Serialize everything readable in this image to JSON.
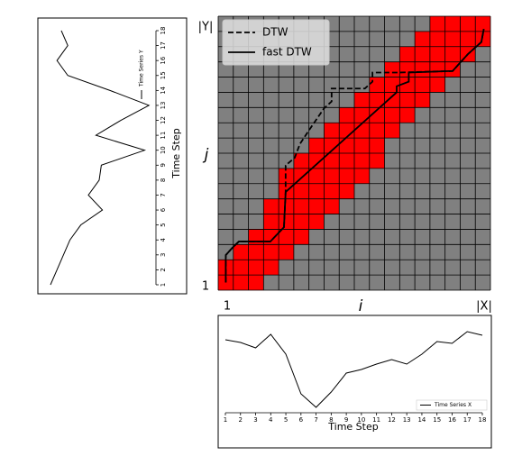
{
  "chart_data": [
    {
      "type": "grid",
      "y_end_label": "|Y|",
      "ylabel": "j",
      "y_start_label": "1",
      "x_start_label": "1",
      "xlabel": "i",
      "x_end_label": "|X|",
      "xlim": [
        0.5,
        18.5
      ],
      "ylim": [
        0.5,
        18.5
      ],
      "background": "#808080",
      "window_color": "#ff0000",
      "window": [
        [
          1,
          3
        ],
        [
          1,
          4
        ],
        [
          2,
          5
        ],
        [
          3,
          6
        ],
        [
          4,
          7
        ],
        [
          4,
          8
        ],
        [
          5,
          9
        ],
        [
          5,
          10
        ],
        [
          6,
          11
        ],
        [
          7,
          11
        ],
        [
          8,
          12
        ],
        [
          9,
          13
        ],
        [
          10,
          14
        ],
        [
          11,
          15
        ],
        [
          12,
          16
        ],
        [
          13,
          17
        ],
        [
          14,
          18
        ],
        [
          15,
          18
        ]
      ],
      "legend": "upper left",
      "series": [
        {
          "name": "DTW",
          "color": "#000000",
          "dashed": true,
          "x": [
            1,
            1,
            1.45,
            1.87,
            3.95,
            4.85,
            4.96,
            4.96,
            5.56,
            5.9,
            6.5,
            7.5,
            8.0,
            8.0,
            10.2,
            10.7,
            10.7,
            12.4,
            16.0,
            17.0,
            17.9,
            18.06
          ],
          "values": [
            1,
            2.8,
            3.3,
            3.7,
            3.7,
            4.64,
            6.95,
            8.7,
            9.2,
            10.1,
            11.0,
            12.45,
            12.9,
            13.75,
            13.75,
            14.2,
            14.8,
            14.8,
            14.9,
            16.0,
            16.8,
            17.66
          ]
        },
        {
          "name": "fast DTW",
          "color": "#000000",
          "dashed": false,
          "x": [
            1,
            1,
            1.45,
            1.87,
            3.95,
            4.85,
            4.96,
            12.3,
            12.3,
            13.1,
            13.1,
            16.0,
            17.0,
            17.9,
            18.06
          ],
          "values": [
            1,
            2.8,
            3.3,
            3.7,
            3.7,
            4.64,
            6.95,
            13.5,
            13.9,
            14.2,
            14.8,
            14.9,
            16.0,
            16.8,
            17.66
          ]
        }
      ]
    },
    {
      "type": "line",
      "rotated": true,
      "xlabel": "Time Step",
      "x": [
        1,
        2,
        3,
        4,
        5,
        6,
        7,
        8,
        9,
        10,
        11,
        12,
        13,
        14,
        15,
        16,
        17,
        18
      ],
      "xticks": [
        1,
        2,
        3,
        4,
        5,
        6,
        7,
        8,
        9,
        10,
        11,
        12,
        13,
        14,
        15,
        16,
        17,
        18
      ],
      "xlim": [
        1,
        18
      ],
      "ylim": [
        0,
        10
      ],
      "series": [
        {
          "name": "Time Series Y",
          "color": "#000000",
          "values": [
            0.5,
            1.1,
            1.7,
            2.3,
            3.3,
            5.3,
            4.0,
            5.0,
            5.2,
            9.2,
            4.7,
            7.0,
            9.6,
            6.0,
            2.1,
            1.1,
            2.1,
            1.5
          ]
        }
      ]
    },
    {
      "type": "line",
      "rotated": false,
      "xlabel": "Time Step",
      "x": [
        1,
        2,
        3,
        4,
        5,
        6,
        7,
        8,
        9,
        10,
        11,
        12,
        13,
        14,
        15,
        16,
        17,
        18
      ],
      "xticks": [
        1,
        2,
        3,
        4,
        5,
        6,
        7,
        8,
        9,
        10,
        11,
        12,
        13,
        14,
        15,
        16,
        17,
        18
      ],
      "xlim": [
        1,
        18
      ],
      "ylim": [
        0,
        10
      ],
      "series": [
        {
          "name": "Time Series X",
          "color": "#000000",
          "values": [
            8.3,
            8.0,
            7.4,
            8.9,
            6.7,
            2.3,
            0.8,
            2.5,
            4.6,
            5.0,
            5.6,
            6.1,
            5.6,
            6.7,
            8.1,
            7.9,
            9.2,
            8.8
          ]
        }
      ]
    }
  ]
}
